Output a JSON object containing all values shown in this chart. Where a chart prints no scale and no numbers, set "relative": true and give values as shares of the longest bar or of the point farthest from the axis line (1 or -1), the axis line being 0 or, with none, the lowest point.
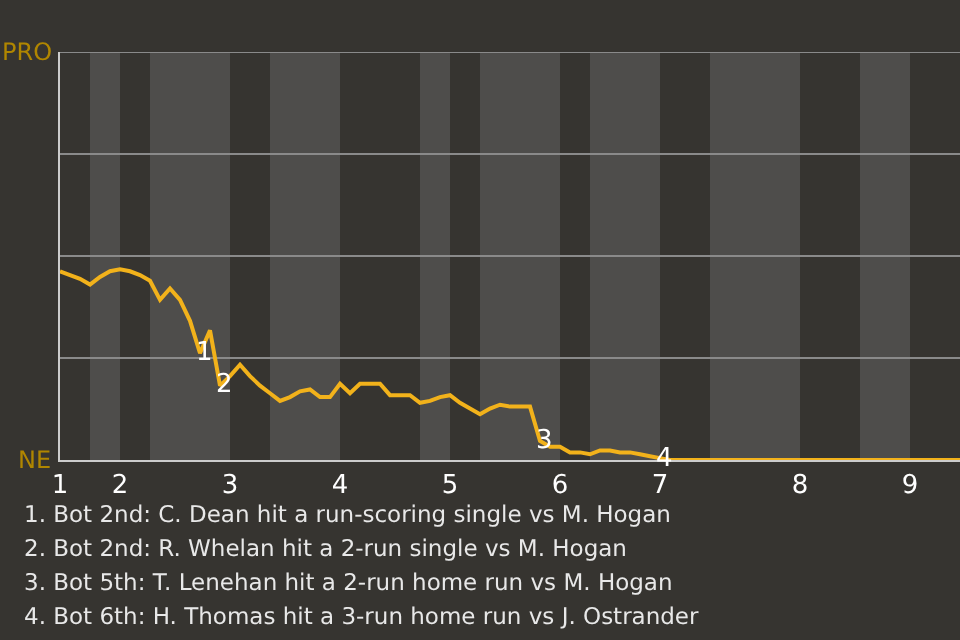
{
  "chart_data": {
    "type": "line",
    "relative": true,
    "categories": [
      "1",
      null,
      null,
      null,
      null,
      null,
      "2",
      null,
      null,
      null,
      null,
      null,
      null,
      null,
      null,
      null,
      null,
      "3",
      null,
      null,
      null,
      null,
      null,
      null,
      null,
      null,
      null,
      null,
      "4",
      null,
      null,
      null,
      null,
      null,
      null,
      null,
      null,
      null,
      null,
      "5",
      null,
      null,
      null,
      null,
      null,
      null,
      null,
      null,
      null,
      null,
      "6",
      null,
      null,
      null,
      null,
      null,
      null,
      null,
      null,
      null,
      "7",
      null,
      null,
      null,
      null,
      null,
      null,
      null,
      null,
      null,
      null,
      null,
      null,
      null,
      "8",
      null,
      null,
      null,
      null,
      null,
      null,
      null,
      null,
      null,
      null,
      "9",
      null,
      null,
      null,
      null,
      null
    ],
    "series": [
      {
        "color": "#f2b21b",
        "values": [
          0.99,
          0.97,
          0.95,
          0.92,
          0.96,
          0.99,
          1,
          0.99,
          0.97,
          0.94,
          0.84,
          0.9,
          0.84,
          0.73,
          0.56,
          0.68,
          0.39,
          0.44,
          0.5,
          0.44,
          0.39,
          0.35,
          0.31,
          0.33,
          0.36,
          0.37,
          0.33,
          0.33,
          0.4,
          0.35,
          0.4,
          0.4,
          0.4,
          0.34,
          0.34,
          0.34,
          0.3,
          0.31,
          0.33,
          0.34,
          0.3,
          0.27,
          0.24,
          0.27,
          0.29,
          0.28,
          0.28,
          0.28,
          0.1,
          0.07,
          0.07,
          0.04,
          0.04,
          0.03,
          0.05,
          0.05,
          0.04,
          0.04,
          0.03,
          0.02,
          0.01,
          0,
          0,
          0,
          0,
          0,
          0,
          0,
          0,
          0,
          0,
          0,
          0,
          0,
          0,
          0,
          0,
          0,
          0,
          0,
          0,
          0,
          0,
          0,
          0,
          0,
          0,
          0,
          0,
          0,
          0
        ]
      }
    ],
    "ref_lines": [
      {
        "axis": "y",
        "value": 0.535,
        "color": "#8a8a8a"
      },
      {
        "axis": "y",
        "value": 1.07,
        "color": "#8a8a8a"
      },
      {
        "axis": "y",
        "value": 1.605,
        "color": "#8a8a8a"
      },
      {
        "axis": "y",
        "value": 2.14,
        "color": "#8a8a8a"
      }
    ],
    "marker": "none",
    "line_style": "solid",
    "legend": false,
    "annotations": [
      "PRO",
      "NE",
      {
        "text": "1",
        "y": 0.56
      },
      {
        "text": "2",
        "y": 0.39
      },
      {
        "text": "3",
        "y": 0.1
      },
      {
        "text": "4",
        "y": 0.01
      },
      "1. Bot 2nd: C. Dean hit a run-scoring single vs M. Hogan",
      "2. Bot 2nd: R. Whelan hit a 2-run single vs M. Hogan",
      "3. Bot 5th: T. Lenehan hit a 2-run home run vs M. Hogan",
      "4. Bot 6th: H. Thomas hit a 3-run home run vs J. Ostrander"
    ]
  }
}
